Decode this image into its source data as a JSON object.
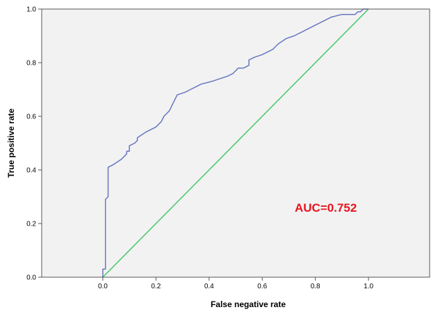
{
  "chart_data": {
    "type": "line",
    "title": "",
    "xlabel": "False negative rate",
    "ylabel": "True positive rate",
    "xlim": [
      -0.23,
      1.23
    ],
    "ylim": [
      0,
      1
    ],
    "x_ticks": [
      "0.0",
      "0.2",
      "0.4",
      "0.6",
      "0.8",
      "1.0"
    ],
    "y_ticks": [
      "0.0",
      "0.2",
      "0.4",
      "0.6",
      "0.8",
      "1.0"
    ],
    "grid": false,
    "legend": "none",
    "annotation": "AUC=0.752",
    "colors": {
      "roc": "#6677c0",
      "reference": "#45c86a",
      "annotation": "#e8141e",
      "plot_background": "#f2f2f2"
    },
    "series": [
      {
        "role": "roc",
        "x": [
          0.0,
          0.0,
          0.01,
          0.01,
          0.02,
          0.02,
          0.04,
          0.07,
          0.08,
          0.09,
          0.09,
          0.1,
          0.1,
          0.12,
          0.13,
          0.13,
          0.16,
          0.18,
          0.2,
          0.22,
          0.23,
          0.25,
          0.26,
          0.27,
          0.28,
          0.31,
          0.33,
          0.35,
          0.37,
          0.41,
          0.44,
          0.47,
          0.49,
          0.5,
          0.51,
          0.53,
          0.55,
          0.55,
          0.57,
          0.6,
          0.62,
          0.64,
          0.65,
          0.66,
          0.69,
          0.72,
          0.76,
          0.8,
          0.84,
          0.86,
          0.9,
          0.95,
          0.96,
          0.97,
          0.98,
          0.99,
          1.0
        ],
        "y": [
          0.0,
          0.03,
          0.03,
          0.29,
          0.3,
          0.41,
          0.42,
          0.44,
          0.45,
          0.46,
          0.47,
          0.47,
          0.49,
          0.5,
          0.51,
          0.52,
          0.54,
          0.55,
          0.56,
          0.58,
          0.6,
          0.62,
          0.64,
          0.66,
          0.68,
          0.69,
          0.7,
          0.71,
          0.72,
          0.73,
          0.74,
          0.75,
          0.76,
          0.77,
          0.78,
          0.78,
          0.79,
          0.81,
          0.82,
          0.83,
          0.84,
          0.85,
          0.86,
          0.87,
          0.89,
          0.9,
          0.92,
          0.94,
          0.96,
          0.97,
          0.98,
          0.98,
          0.99,
          0.99,
          1.0,
          1.0,
          1.0
        ]
      },
      {
        "role": "reference",
        "x": [
          0.0,
          1.0
        ],
        "y": [
          0.0,
          1.0
        ]
      }
    ]
  }
}
